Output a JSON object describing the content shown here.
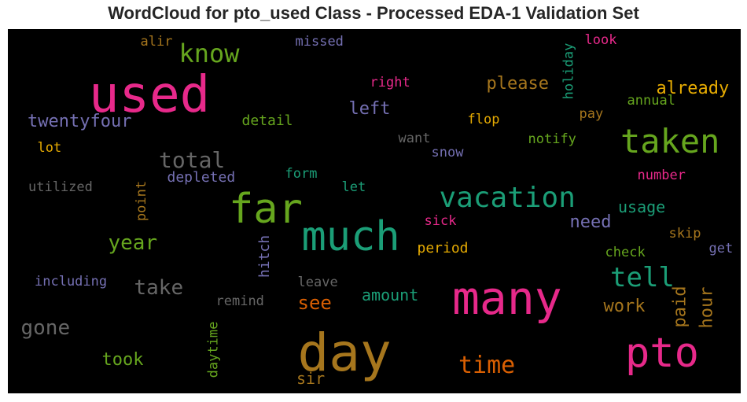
{
  "chart_data": {
    "type": "wordcloud",
    "title": "WordCloud for pto_used Class - Processed EDA-1 Validation Set",
    "background": "#000000",
    "words": [
      {
        "text": "used",
        "size": 64,
        "color": "#e7298a"
      },
      {
        "text": "know",
        "size": 32,
        "color": "#66a61e"
      },
      {
        "text": "alir",
        "size": 17,
        "color": "#a6761d"
      },
      {
        "text": "missed",
        "size": 17,
        "color": "#7570b3"
      },
      {
        "text": "twentyfour",
        "size": 22,
        "color": "#7570b3"
      },
      {
        "text": "lot",
        "size": 17,
        "color": "#e6ab02"
      },
      {
        "text": "utilized",
        "size": 17,
        "color": "#666666"
      },
      {
        "text": "total",
        "size": 28,
        "color": "#666666"
      },
      {
        "text": "depleted",
        "size": 18,
        "color": "#7570b3"
      },
      {
        "text": "detail",
        "size": 18,
        "color": "#66a61e"
      },
      {
        "text": "left",
        "size": 22,
        "color": "#7570b3"
      },
      {
        "text": "right",
        "size": 17,
        "color": "#e7298a"
      },
      {
        "text": "please",
        "size": 22,
        "color": "#a6761d"
      },
      {
        "text": "holiday",
        "size": 17,
        "color": "#1b9e77"
      },
      {
        "text": "look",
        "size": 17,
        "color": "#e7298a"
      },
      {
        "text": "already",
        "size": 22,
        "color": "#e6ab02"
      },
      {
        "text": "annual",
        "size": 17,
        "color": "#66a61e"
      },
      {
        "text": "pay",
        "size": 17,
        "color": "#a6761d"
      },
      {
        "text": "flop",
        "size": 17,
        "color": "#e6ab02"
      },
      {
        "text": "want",
        "size": 17,
        "color": "#666666"
      },
      {
        "text": "notify",
        "size": 17,
        "color": "#66a61e"
      },
      {
        "text": "snow",
        "size": 17,
        "color": "#7570b3"
      },
      {
        "text": "taken",
        "size": 42,
        "color": "#66a61e"
      },
      {
        "text": "form",
        "size": 17,
        "color": "#1b9e77"
      },
      {
        "text": "let",
        "size": 17,
        "color": "#1b9e77"
      },
      {
        "text": "point",
        "size": 17,
        "color": "#a6761d"
      },
      {
        "text": "far",
        "size": 52,
        "color": "#66a61e"
      },
      {
        "text": "vacation",
        "size": 36,
        "color": "#1b9e77"
      },
      {
        "text": "number",
        "size": 17,
        "color": "#e7298a"
      },
      {
        "text": "usage",
        "size": 20,
        "color": "#1b9e77"
      },
      {
        "text": "sick",
        "size": 17,
        "color": "#e7298a"
      },
      {
        "text": "need",
        "size": 22,
        "color": "#7570b3"
      },
      {
        "text": "year",
        "size": 26,
        "color": "#66a61e"
      },
      {
        "text": "much",
        "size": 52,
        "color": "#1b9e77"
      },
      {
        "text": "hitch",
        "size": 18,
        "color": "#7570b3"
      },
      {
        "text": "period",
        "size": 18,
        "color": "#e6ab02"
      },
      {
        "text": "skip",
        "size": 17,
        "color": "#a6761d"
      },
      {
        "text": "get",
        "size": 17,
        "color": "#7570b3"
      },
      {
        "text": "check",
        "size": 17,
        "color": "#66a61e"
      },
      {
        "text": "including",
        "size": 17,
        "color": "#7570b3"
      },
      {
        "text": "take",
        "size": 26,
        "color": "#666666"
      },
      {
        "text": "leave",
        "size": 17,
        "color": "#666666"
      },
      {
        "text": "tell",
        "size": 34,
        "color": "#1b9e77"
      },
      {
        "text": "paid",
        "size": 22,
        "color": "#a6761d"
      },
      {
        "text": "hour",
        "size": 22,
        "color": "#a6761d"
      },
      {
        "text": "amount",
        "size": 20,
        "color": "#1b9e77"
      },
      {
        "text": "many",
        "size": 58,
        "color": "#e7298a"
      },
      {
        "text": "see",
        "size": 24,
        "color": "#d95f02"
      },
      {
        "text": "remind",
        "size": 17,
        "color": "#666666"
      },
      {
        "text": "work",
        "size": 22,
        "color": "#a6761d"
      },
      {
        "text": "gone",
        "size": 26,
        "color": "#666666"
      },
      {
        "text": "daytime",
        "size": 17,
        "color": "#66a61e"
      },
      {
        "text": "day",
        "size": 66,
        "color": "#a6761d"
      },
      {
        "text": "pto",
        "size": 52,
        "color": "#e7298a"
      },
      {
        "text": "took",
        "size": 22,
        "color": "#66a61e"
      },
      {
        "text": "time",
        "size": 30,
        "color": "#d95f02"
      },
      {
        "text": "sir",
        "size": 20,
        "color": "#a6761d"
      }
    ]
  }
}
